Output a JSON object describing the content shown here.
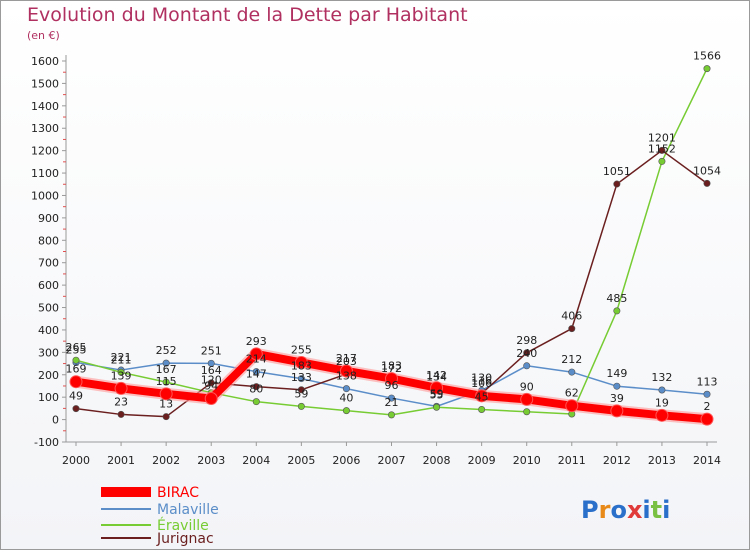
{
  "chart_data": {
    "type": "line",
    "title": "Evolution du Montant de la Dette par Habitant",
    "subtitle": "(en €)",
    "xlabel": "",
    "ylabel": "",
    "categories": [
      "2000",
      "2001",
      "2002",
      "2003",
      "2004",
      "2005",
      "2006",
      "2007",
      "2008",
      "2009",
      "2010",
      "2011",
      "2012",
      "2013",
      "2014"
    ],
    "ylim": [
      -100,
      1600
    ],
    "yticks": [
      -100,
      0,
      100,
      200,
      300,
      400,
      500,
      600,
      700,
      800,
      900,
      1000,
      1100,
      1200,
      1300,
      1400,
      1500,
      1600
    ],
    "grid": false,
    "legend": "bottom-left",
    "series": [
      {
        "name": "BIRAC",
        "color": "#ff0000",
        "values": [
          169,
          139,
          115,
          94,
          293,
          255,
          217,
          183,
          142,
          106,
          90,
          62,
          39,
          19,
          2
        ]
      },
      {
        "name": "Malaville",
        "color": "#5b8ec9",
        "values": [
          255,
          221,
          252,
          251,
          214,
          183,
          138,
          96,
          59,
          130,
          240,
          212,
          149,
          132,
          113
        ]
      },
      {
        "name": "Éraville",
        "color": "#77cc33",
        "values": [
          265,
          211,
          167,
          120,
          80,
          59,
          40,
          21,
          55,
          45,
          35,
          25,
          485,
          1152,
          1566
        ]
      },
      {
        "name": "Jurignac",
        "color": "#6b1f1f",
        "values": [
          49,
          23,
          13,
          164,
          147,
          133,
          203,
          172,
          134,
          116,
          298,
          406,
          1051,
          1201,
          1054
        ]
      }
    ],
    "data_labels": [
      {
        "series": 0,
        "labels": [
          "169",
          "139",
          "115",
          "94",
          "293",
          "255",
          "217",
          "183",
          "142",
          "106",
          "90",
          "62",
          "39",
          "19",
          "2"
        ]
      },
      {
        "series": 1,
        "labels": [
          "255",
          "221",
          "252",
          "251",
          "214",
          "183",
          "138",
          "96",
          "59",
          "130",
          "240",
          "212",
          "149",
          "132",
          "113"
        ]
      },
      {
        "series": 2,
        "labels": [
          "265",
          "211",
          "167",
          "120",
          "80",
          "59",
          "40",
          "21",
          "55",
          "45",
          "",
          "",
          "485",
          "1152",
          "1566"
        ]
      },
      {
        "series": 3,
        "labels": [
          "49",
          "23",
          "13",
          "164",
          "147",
          "133",
          "203",
          "172",
          "134",
          "116",
          "298",
          "406",
          "1051",
          "1201",
          "1054"
        ]
      }
    ]
  },
  "logo": {
    "text": "Proxiti"
  }
}
